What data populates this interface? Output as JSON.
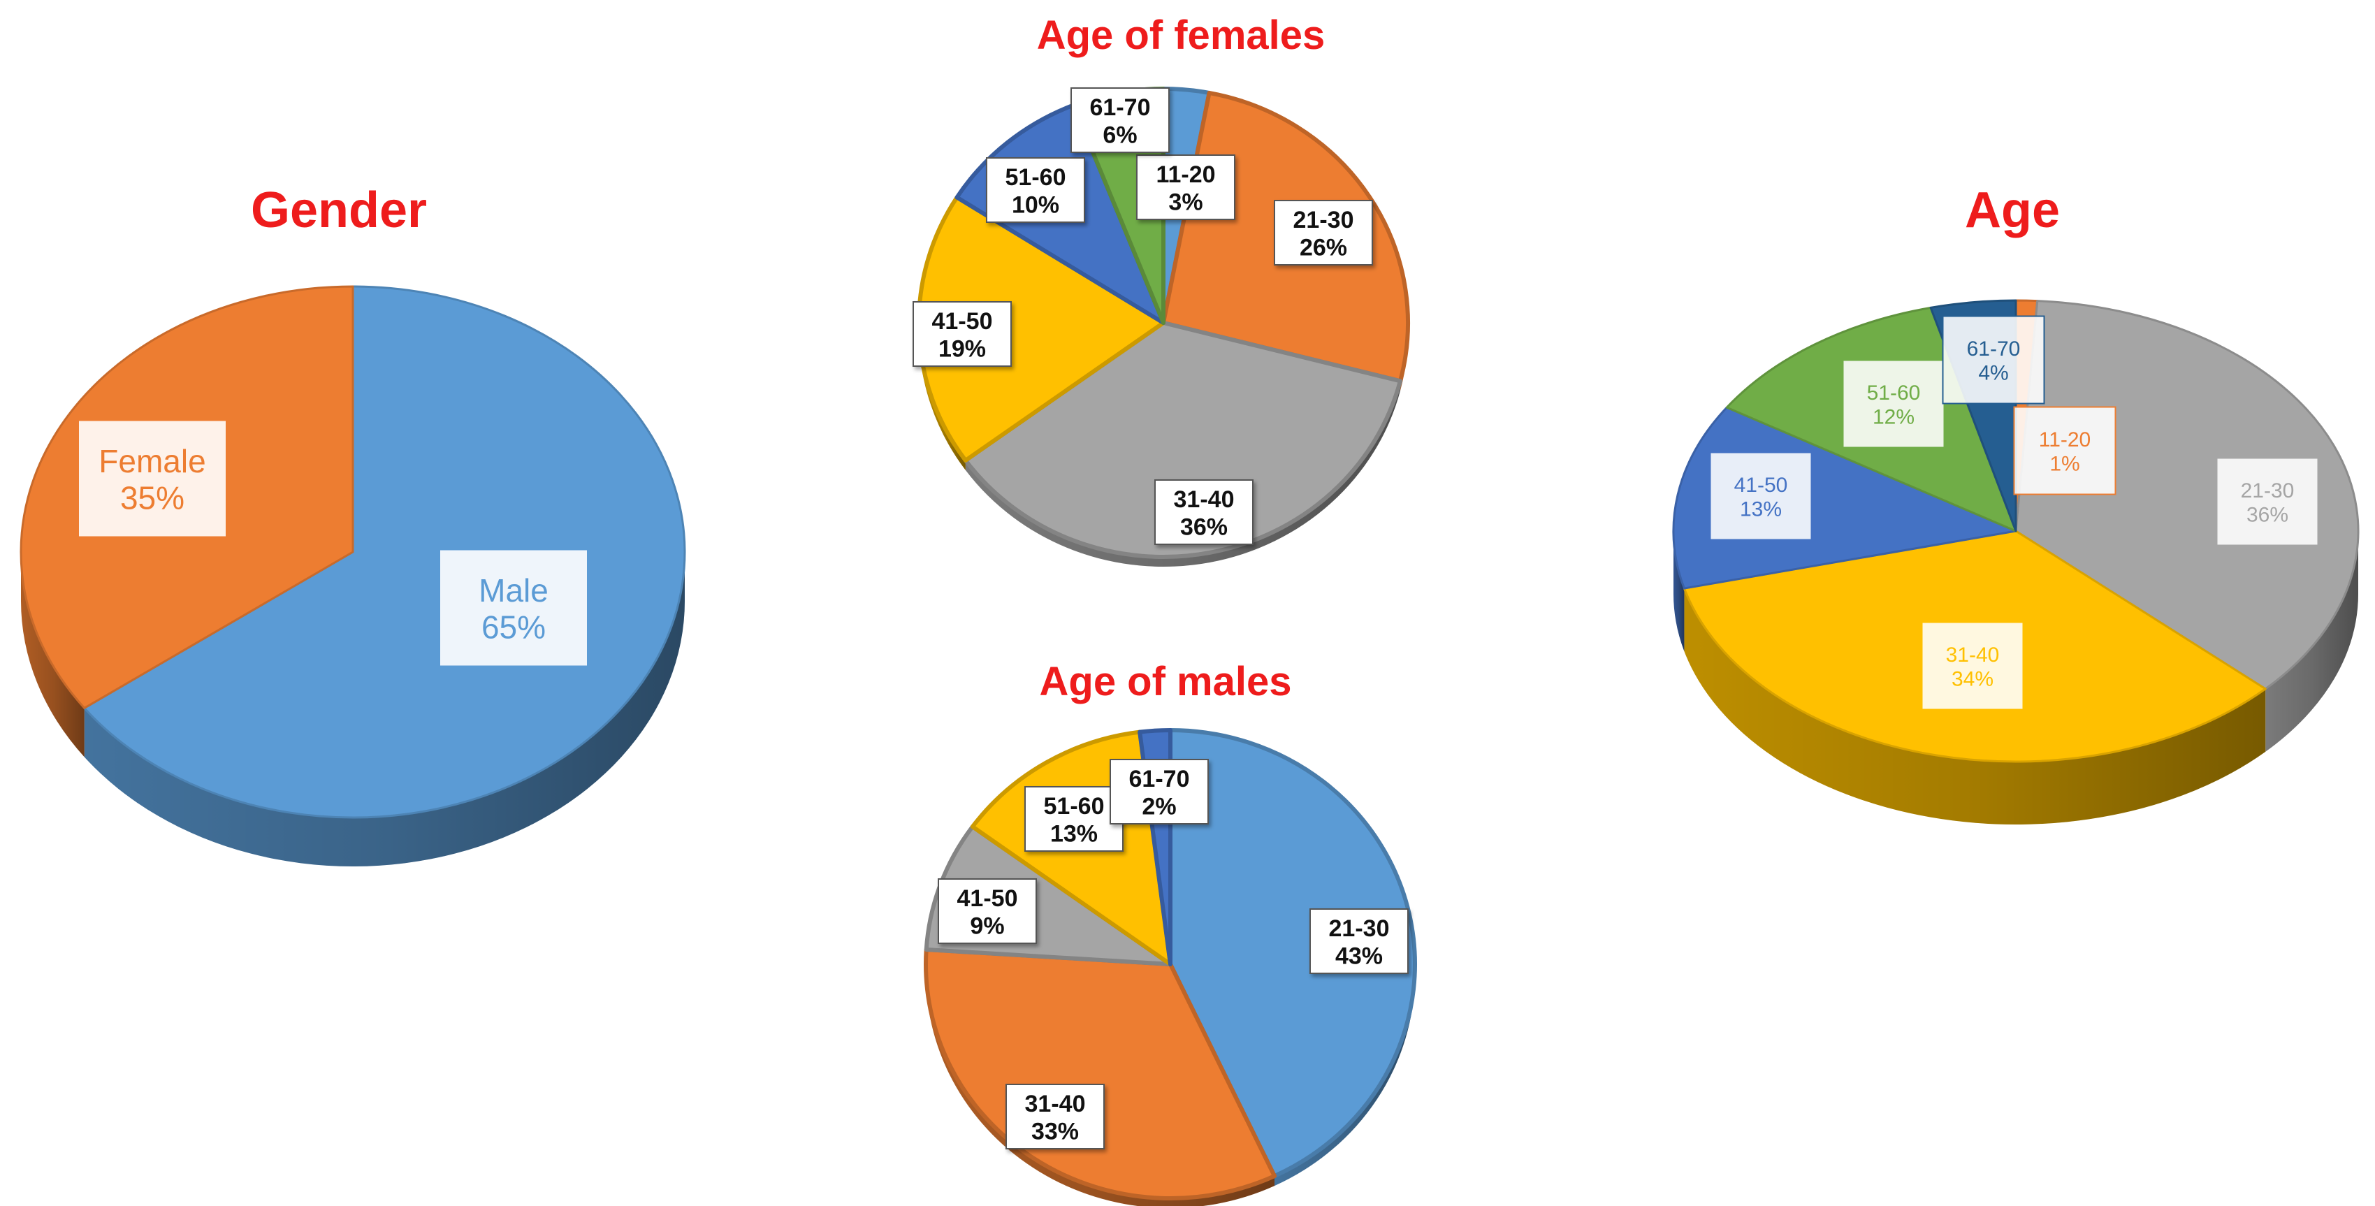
{
  "chart_data": [
    {
      "id": "gender",
      "type": "pie",
      "title": "Gender",
      "categories": [
        "Male",
        "Female"
      ],
      "values": [
        65,
        35
      ],
      "value_labels": [
        "65%",
        "35%"
      ],
      "colors": [
        "#5b9bd5",
        "#ed7d31"
      ],
      "style": "3d"
    },
    {
      "id": "females",
      "type": "pie",
      "title": "Age of females",
      "categories": [
        "11-20",
        "21-30",
        "31-40",
        "41-50",
        "51-60",
        "61-70"
      ],
      "values": [
        3,
        26,
        36,
        19,
        10,
        6
      ],
      "value_labels": [
        "3%",
        "26%",
        "36%",
        "19%",
        "10%",
        "6%"
      ],
      "colors": [
        "#5b9bd5",
        "#ed7d31",
        "#a5a5a5",
        "#ffc000",
        "#4472c4",
        "#70ad47"
      ],
      "style": "flat"
    },
    {
      "id": "males",
      "type": "pie",
      "title": "Age of males",
      "categories": [
        "21-30",
        "31-40",
        "41-50",
        "51-60",
        "61-70"
      ],
      "values": [
        43,
        33,
        9,
        13,
        2
      ],
      "value_labels": [
        "43%",
        "33%",
        "9%",
        "13%",
        "2%"
      ],
      "colors": [
        "#5b9bd5",
        "#ed7d31",
        "#a5a5a5",
        "#ffc000",
        "#4472c4"
      ],
      "style": "flat"
    },
    {
      "id": "age",
      "type": "pie",
      "title": "Age",
      "categories": [
        "11-20",
        "21-30",
        "31-40",
        "41-50",
        "51-60",
        "61-70"
      ],
      "values": [
        1,
        36,
        34,
        13,
        12,
        4
      ],
      "value_labels": [
        "1%",
        "36%",
        "34%",
        "13%",
        "12%",
        "4%"
      ],
      "colors": [
        "#ed7d31",
        "#a5a5a5",
        "#ffc000",
        "#4472c4",
        "#70ad47",
        "#255e91"
      ],
      "style": "3d"
    }
  ]
}
